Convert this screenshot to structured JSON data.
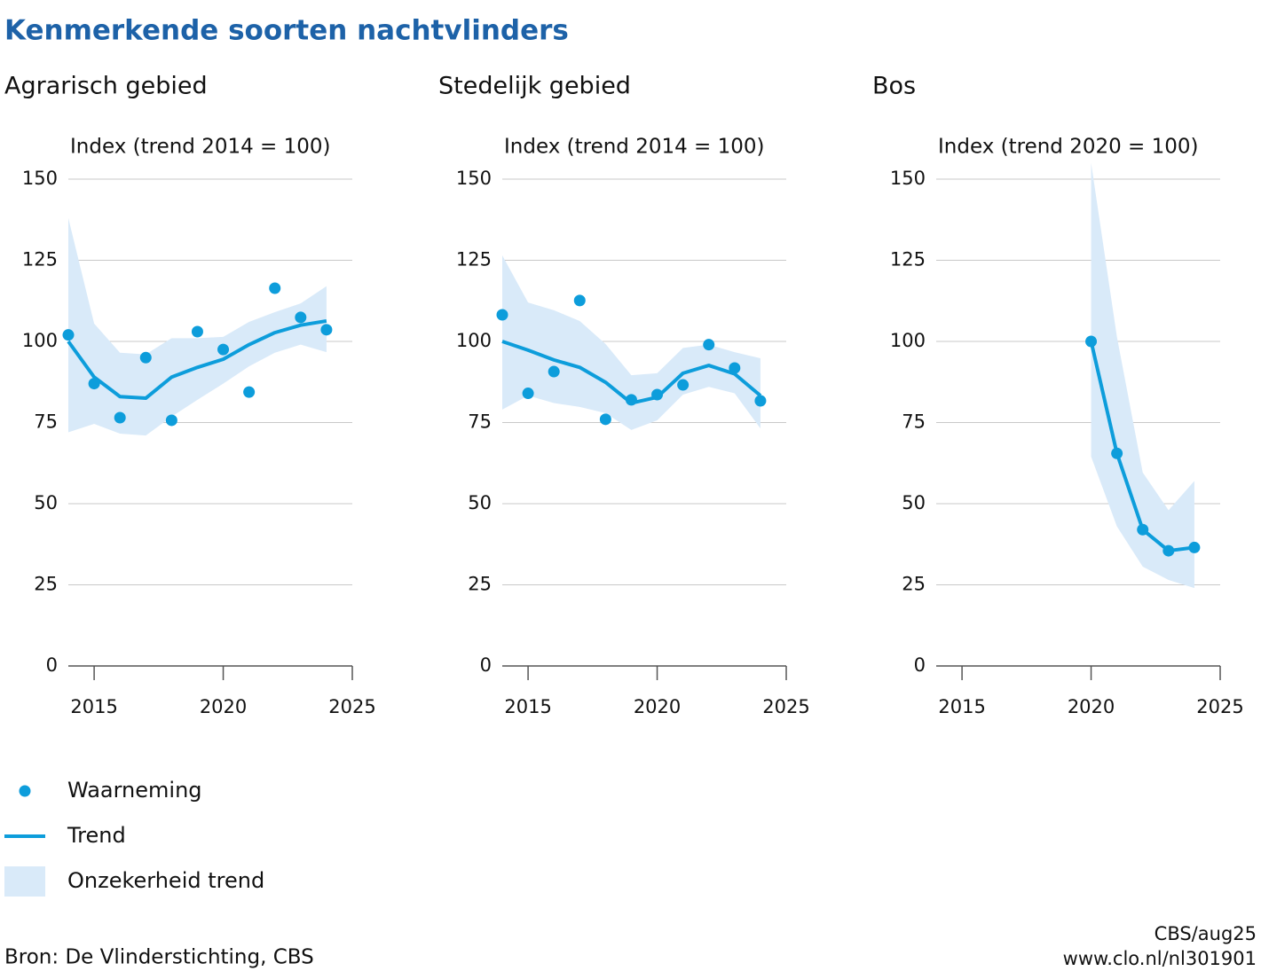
{
  "title": "Kenmerkende soorten nachtvlinders",
  "source": "Bron: De Vlinderstichting, CBS",
  "credit": "CBS/aug25",
  "url": "www.clo.nl/nl301901",
  "chart_data": [
    {
      "type": "line",
      "title": "Agrarisch gebied",
      "y_label": "Index (trend 2014 = 100)",
      "x": [
        2014,
        2015,
        2016,
        2017,
        2018,
        2019,
        2020,
        2021,
        2022,
        2023,
        2024
      ],
      "xlim": [
        2014,
        2025
      ],
      "xticks": [
        2015,
        2020,
        2025
      ],
      "ylim": [
        0,
        150
      ],
      "yticks": [
        0,
        25,
        50,
        75,
        100,
        125,
        150
      ],
      "grid": true,
      "series": [
        {
          "name": "Waarneming",
          "mark": "dot",
          "color": "#0d9ddb",
          "values": [
            102,
            87,
            76.5,
            95,
            75.7,
            103,
            97.5,
            84.4,
            116.4,
            107.4,
            103.6
          ]
        },
        {
          "name": "Trend",
          "mark": "line",
          "color": "#0d9ddb",
          "values": [
            100,
            89,
            83,
            82.5,
            89,
            92,
            94.5,
            99,
            102.7,
            105,
            106.3
          ]
        },
        {
          "name": "Onzekerheid trend",
          "mark": "band",
          "color": "#d9eaf9",
          "lower": [
            72,
            74.6,
            71.6,
            71,
            76.8,
            82,
            87,
            92.3,
            96.5,
            99,
            96.7
          ],
          "upper": [
            138,
            105.5,
            96.5,
            96,
            101,
            101,
            101.4,
            106,
            109,
            111.7,
            117
          ]
        }
      ]
    },
    {
      "type": "line",
      "title": "Stedelijk gebied",
      "y_label": "Index (trend 2014 = 100)",
      "x": [
        2014,
        2015,
        2016,
        2017,
        2018,
        2019,
        2020,
        2021,
        2022,
        2023,
        2024
      ],
      "xlim": [
        2014,
        2025
      ],
      "xticks": [
        2015,
        2020,
        2025
      ],
      "ylim": [
        0,
        150
      ],
      "yticks": [
        0,
        25,
        50,
        75,
        100,
        125,
        150
      ],
      "grid": true,
      "series": [
        {
          "mark": "dot",
          "color": "#0d9ddb",
          "values": [
            108.2,
            84,
            90.7,
            112.6,
            76,
            82,
            83.6,
            86.6,
            99,
            91.8,
            81.7
          ]
        },
        {
          "mark": "line",
          "color": "#0d9ddb",
          "values": [
            100,
            97.3,
            94.3,
            92,
            87.4,
            81,
            82.8,
            90.2,
            92.6,
            90,
            83.3
          ]
        },
        {
          "mark": "band",
          "color": "#d9eaf9",
          "lower": [
            79,
            83.3,
            81,
            79.8,
            77.9,
            72.7,
            75.7,
            83.6,
            86,
            84,
            73.2
          ],
          "upper": [
            126.5,
            112,
            109.6,
            106.3,
            99.2,
            89.6,
            90.2,
            98,
            99,
            96.7,
            94.8
          ]
        }
      ]
    },
    {
      "type": "line",
      "title": "Bos",
      "y_label": "Index (trend 2020 = 100)",
      "x": [
        2020,
        2021,
        2022,
        2023,
        2024
      ],
      "xlim": [
        2014,
        2025
      ],
      "xticks": [
        2015,
        2020,
        2025
      ],
      "ylim": [
        0,
        150
      ],
      "yticks": [
        0,
        25,
        50,
        75,
        100,
        125,
        150
      ],
      "grid": true,
      "series": [
        {
          "mark": "dot",
          "color": "#0d9ddb",
          "values": [
            100,
            65.5,
            42,
            35.5,
            36.5
          ]
        },
        {
          "mark": "line",
          "color": "#0d9ddb",
          "values": [
            100,
            65.5,
            42,
            35.5,
            36.5
          ]
        },
        {
          "mark": "band",
          "color": "#d9eaf9",
          "lower": [
            64.5,
            43,
            30.6,
            26.5,
            24
          ],
          "upper": [
            155,
            101.4,
            59.6,
            48,
            57
          ]
        }
      ]
    }
  ]
}
